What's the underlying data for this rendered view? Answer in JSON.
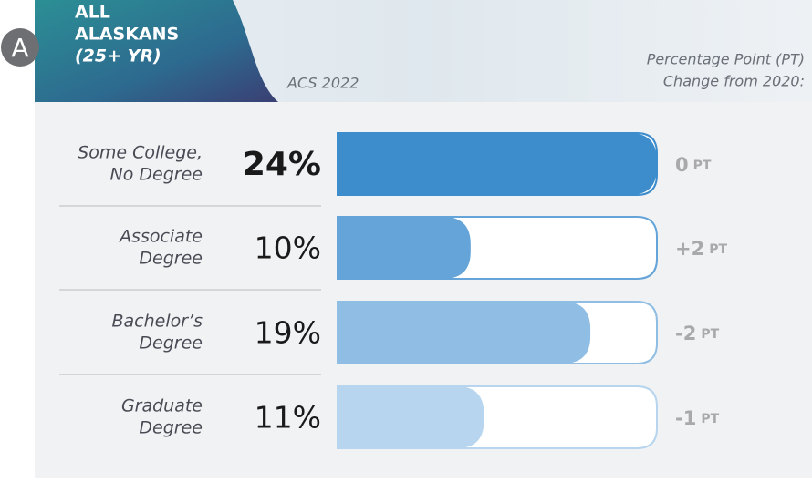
{
  "chart_data": {
    "type": "bar",
    "badge": "A",
    "title": [
      "ALL",
      "ALASKANS",
      "(25+ YR)"
    ],
    "source": "ACS 2022",
    "change_header": [
      "Percentage Point (PT)",
      "Change from 2020:"
    ],
    "categories": [
      [
        "Some College,",
        "No Degree"
      ],
      [
        "Associate",
        "Degree"
      ],
      [
        "Bachelor’s",
        "Degree"
      ],
      [
        "Graduate",
        "Degree"
      ]
    ],
    "values": [
      24,
      10,
      19,
      11
    ],
    "value_labels": [
      "24%",
      "10%",
      "19%",
      "11%"
    ],
    "colors": [
      "#3d8ccc",
      "#64a4d9",
      "#8fbde3",
      "#b7d5ee"
    ],
    "changes": [
      "0",
      "+2",
      "-2",
      "-1"
    ],
    "change_unit": "PT",
    "xlim": [
      0,
      24
    ]
  }
}
